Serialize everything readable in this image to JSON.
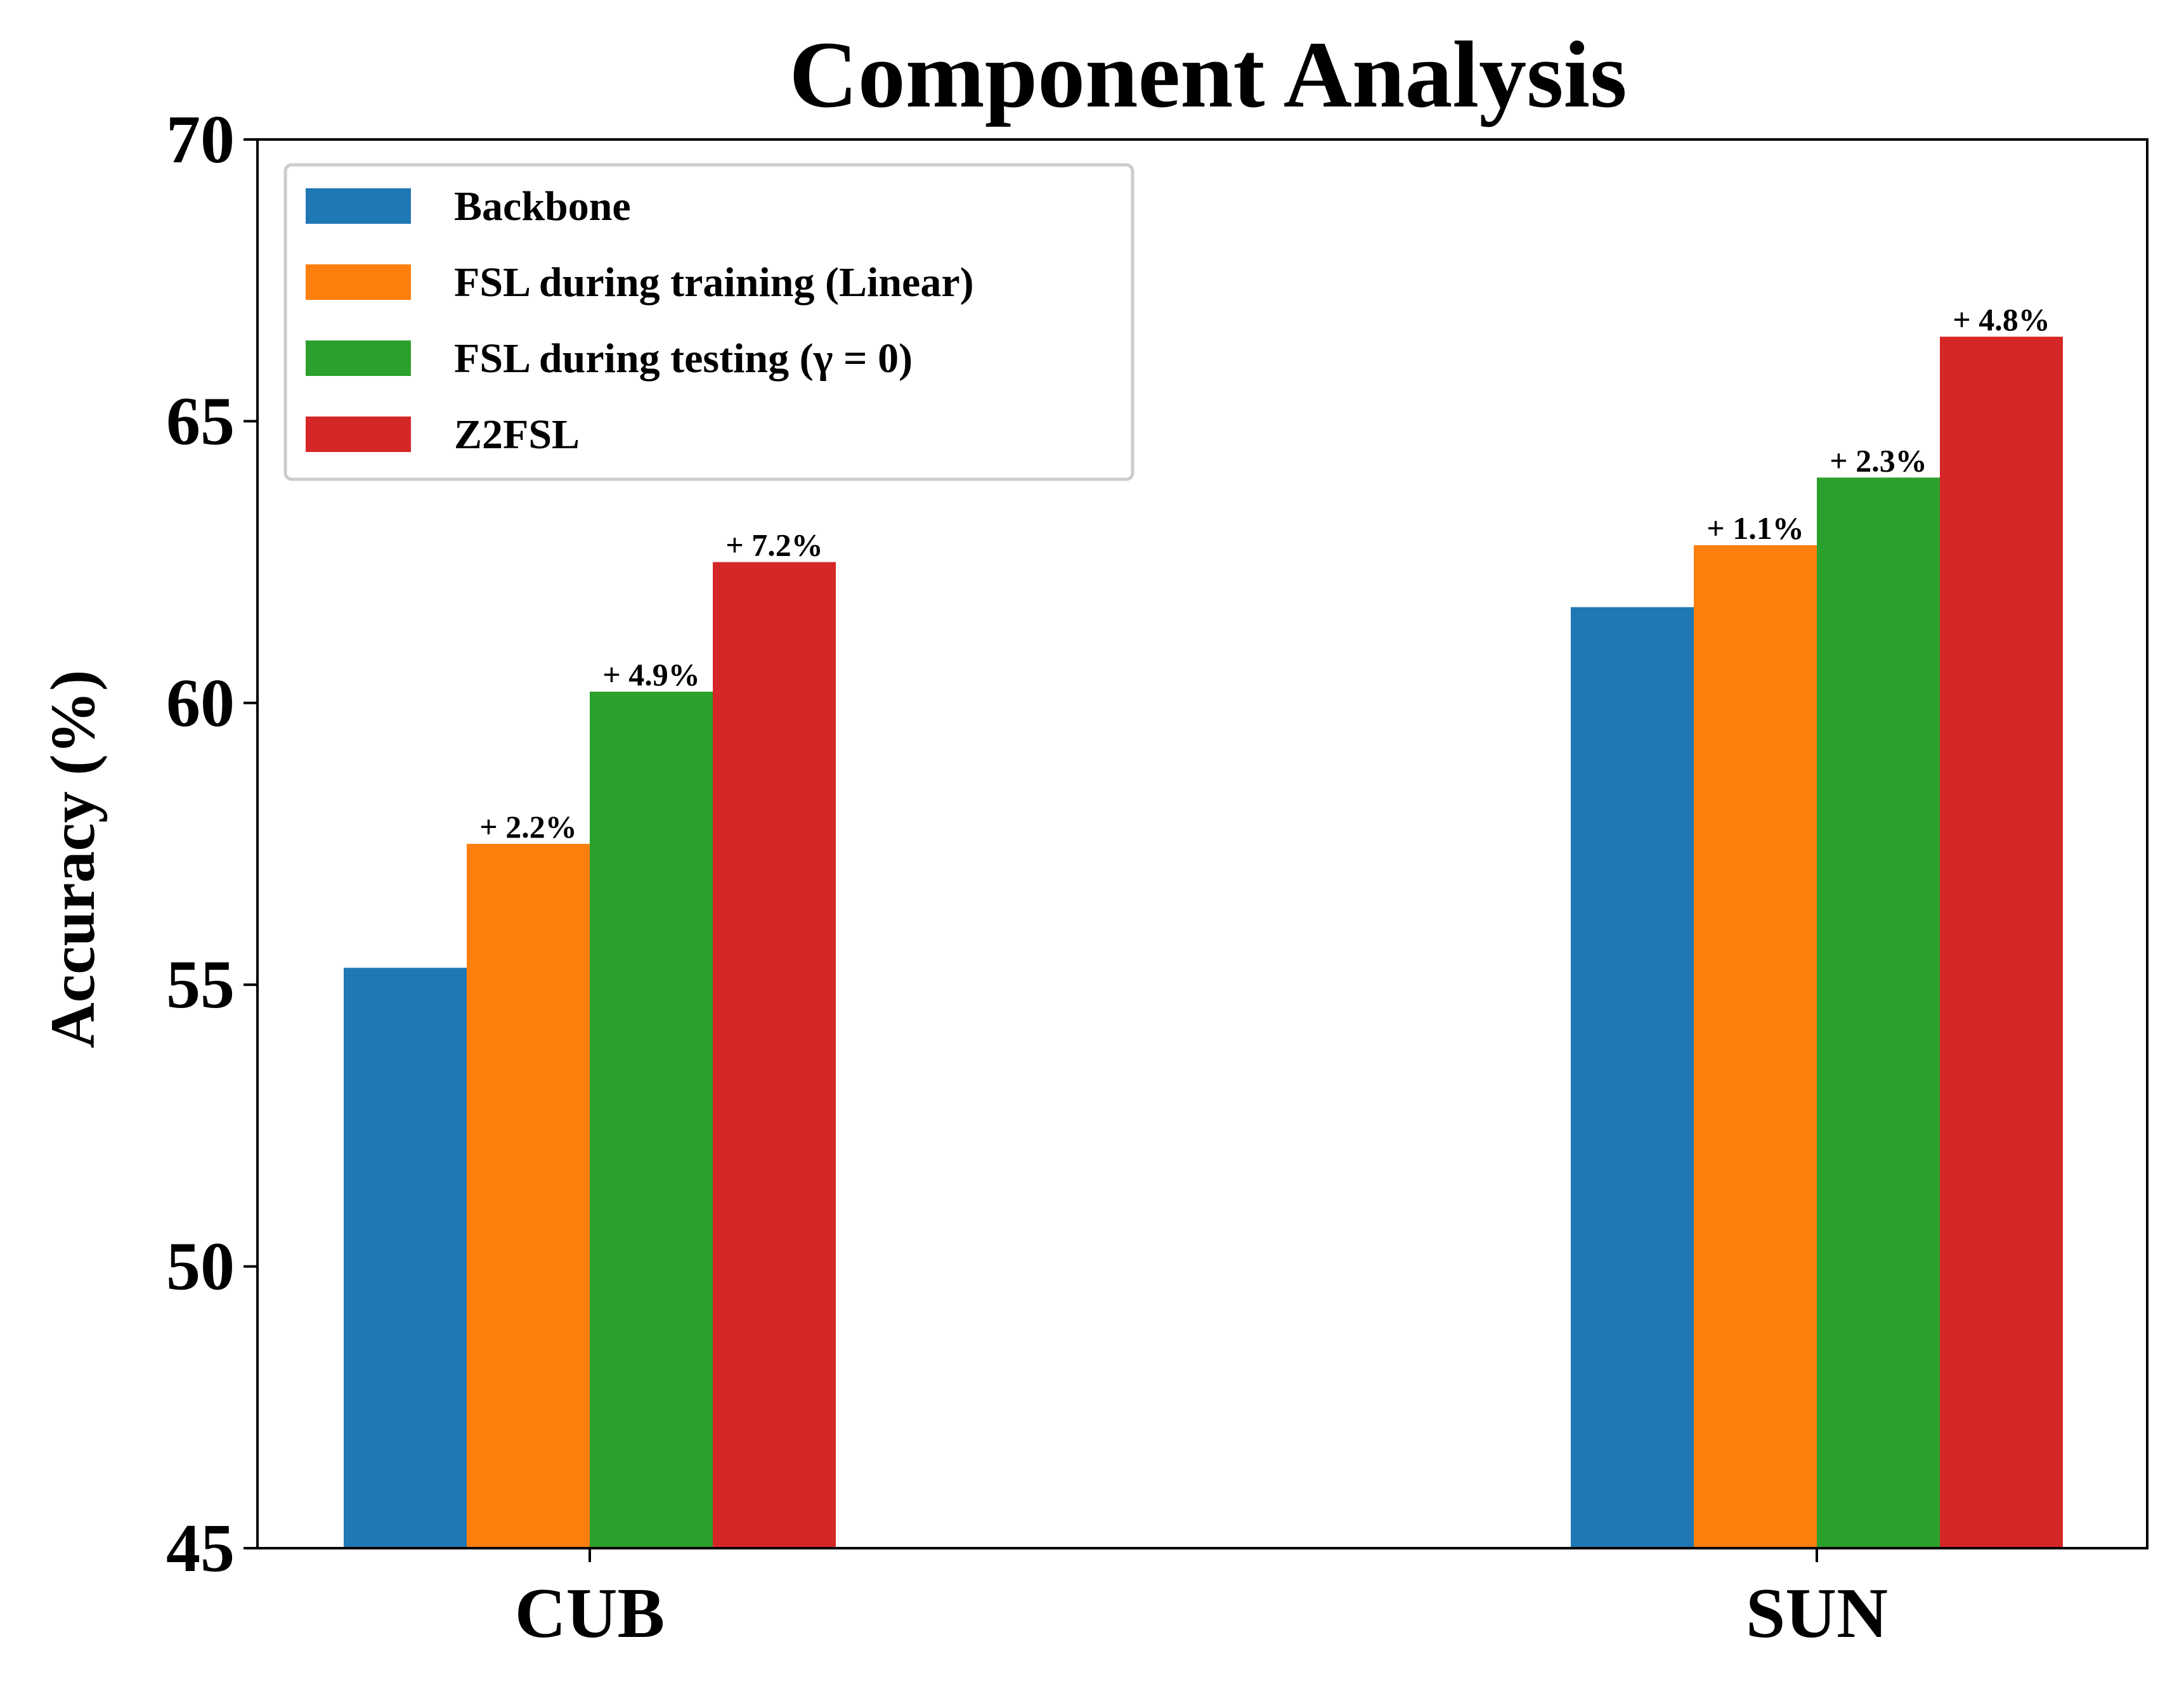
{
  "chart_data": {
    "type": "bar",
    "title": "Component Analysis",
    "xlabel": "",
    "ylabel": "Accuracy (%)",
    "ylim": [
      45,
      70
    ],
    "yticks": [
      45,
      50,
      55,
      60,
      65,
      70
    ],
    "categories": [
      "CUB",
      "SUN"
    ],
    "grid": false,
    "legend_position": "top-left",
    "series": [
      {
        "name": "Backbone",
        "color": "#1f77b4",
        "values": [
          55.3,
          61.7
        ],
        "labels": [
          "",
          ""
        ]
      },
      {
        "name": "FSL during training (Linear)",
        "color": "#ff7f0e",
        "values": [
          57.5,
          62.8
        ],
        "labels": [
          "+ 2.2%",
          "+ 1.1%"
        ]
      },
      {
        "name": "FSL during testing (γ = 0)",
        "color": "#2ca02c",
        "values": [
          60.2,
          64.0
        ],
        "labels": [
          "+ 4.9%",
          "+ 2.3%"
        ]
      },
      {
        "name": "Z2FSL",
        "color": "#d62728",
        "values": [
          62.5,
          66.5
        ],
        "labels": [
          "+ 7.2%",
          "+ 4.8%"
        ]
      }
    ]
  }
}
